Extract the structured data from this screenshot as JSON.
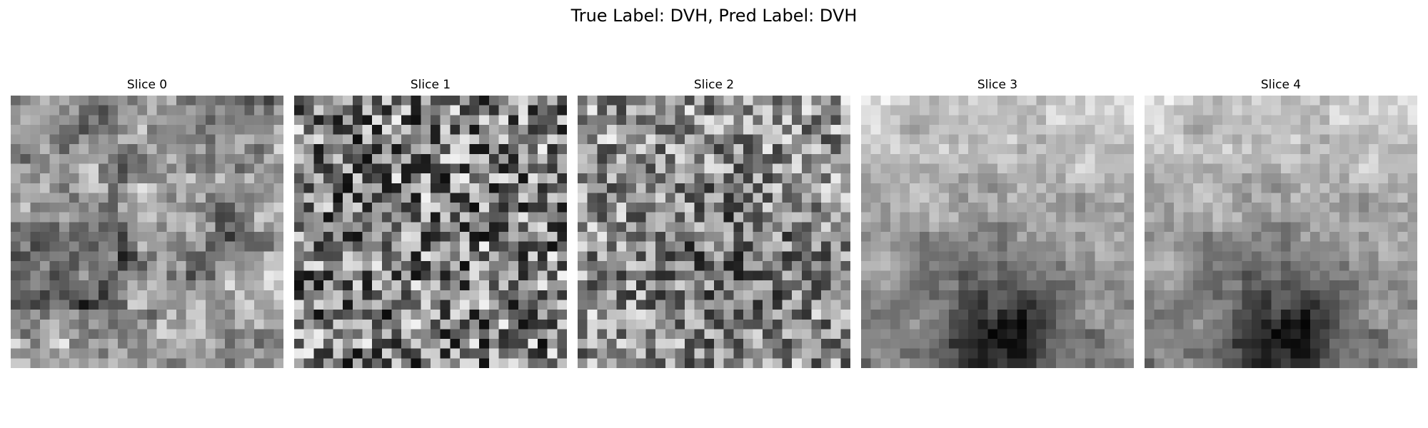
{
  "figure": {
    "title": "True Label: DVH, Pred Label: DVH"
  },
  "slices": [
    {
      "title": "Slice 0"
    },
    {
      "title": "Slice 1"
    },
    {
      "title": "Slice 2"
    },
    {
      "title": "Slice 3"
    },
    {
      "title": "Slice 4"
    }
  ]
}
